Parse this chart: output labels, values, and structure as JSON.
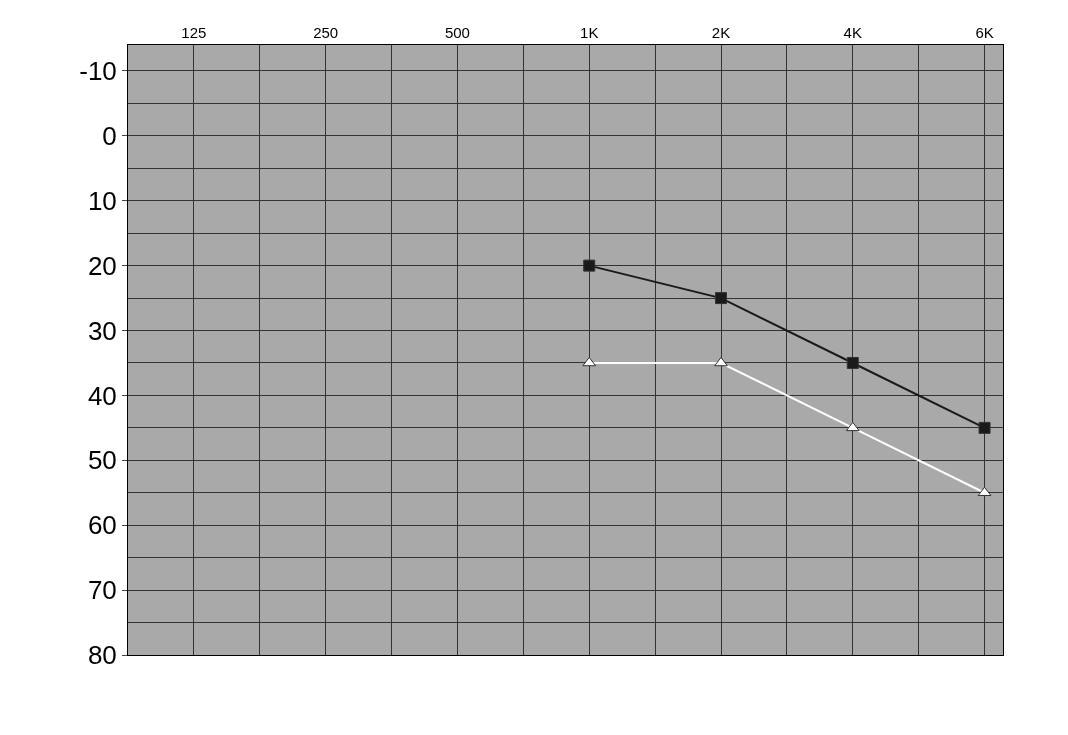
{
  "chart_data": {
    "type": "line",
    "categories": [
      "125",
      "250",
      "500",
      "1K",
      "2K",
      "4K",
      "6K"
    ],
    "series": [
      {
        "color": "#1a1a1a",
        "values": [
          null,
          null,
          null,
          20,
          25,
          35,
          45
        ],
        "marker": "square"
      },
      {
        "color": "#ffffff",
        "values": [
          null,
          null,
          null,
          35,
          35,
          45,
          55
        ],
        "marker": "triangle"
      }
    ],
    "ylim": [
      80,
      -14
    ],
    "yticks": [
      -10,
      0,
      10,
      20,
      30,
      40,
      50,
      60,
      70,
      80
    ],
    "grid": true,
    "line_style": "solid"
  }
}
